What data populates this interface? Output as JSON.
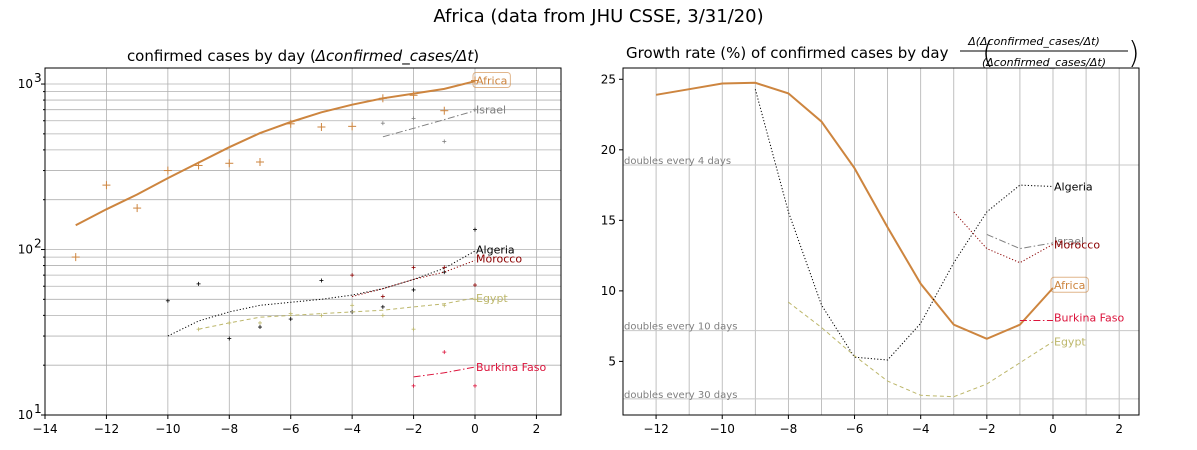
{
  "figure_title": "Africa (data from JHU CSSE, 3/31/20)",
  "colors": {
    "Africa": "#cd853f",
    "Israel": "#808080",
    "Algeria": "#000000",
    "Morocco": "#8b0000",
    "Egypt": "#bdb76b",
    "Burkina Faso": "#dc143c"
  },
  "chart_data": [
    {
      "type": "line",
      "title_prefix": "confirmed cases by day (",
      "title_math": "Δconfirmed_cases/Δt",
      "title_suffix": ")",
      "yscale": "log",
      "xlim": [
        -14,
        2.8
      ],
      "ylim": [
        10,
        1250
      ],
      "xticks": [
        -14,
        -12,
        -10,
        -8,
        -6,
        -4,
        -2,
        0,
        2
      ],
      "xtick_labels": [
        "−14",
        "−12",
        "−10",
        "−8",
        "−6",
        "−4",
        "−2",
        "0",
        "2"
      ],
      "ytick_labels": [
        "10",
        "10",
        "10"
      ],
      "ytick_exps": [
        "1",
        "2",
        "3"
      ],
      "series": [
        {
          "name": "Africa",
          "label": "Africa",
          "boxed": true,
          "style": "solid",
          "x": [
            -13,
            -12,
            -11,
            -10,
            -9,
            -8,
            -7,
            -6,
            -5,
            -4,
            -3,
            -2,
            -1,
            0
          ],
          "y": [
            140,
            175,
            215,
            270,
            335,
            415,
            505,
            590,
            675,
            750,
            820,
            875,
            935,
            1040
          ],
          "points": {
            "x": [
              -13,
              -12,
              -11,
              -10,
              -9,
              -8,
              -7,
              -6,
              -5,
              -4,
              -3,
              -2,
              -1,
              0
            ],
            "y": [
              90,
              245,
              178,
              300,
              322,
              332,
              338,
              575,
              550,
              555,
              820,
              855,
              690,
              1050
            ]
          }
        },
        {
          "name": "Israel",
          "label": "Israel",
          "style": "dashdot",
          "x": [
            -3,
            -2,
            -1,
            0
          ],
          "y": [
            480,
            540,
            610,
            690
          ],
          "points": {
            "x": [
              -3,
              -2,
              -1,
              0
            ],
            "y": [
              580,
              620,
              450,
              700
            ]
          }
        },
        {
          "name": "Algeria",
          "label": "Algeria",
          "style": "dotted",
          "x": [
            -10,
            -9,
            -8,
            -7,
            -6,
            -5,
            -4,
            -3,
            -2,
            -1,
            0
          ],
          "y": [
            30,
            37,
            42,
            46,
            48,
            50,
            53,
            58,
            66,
            77,
            98
          ],
          "points": {
            "x": [
              -10,
              -9,
              -8,
              -7,
              -6,
              -5,
              -4,
              -3,
              -2,
              -1,
              0
            ],
            "y": [
              49,
              62,
              29,
              34,
              38,
              65,
              42,
              45,
              57,
              73,
              132
            ]
          }
        },
        {
          "name": "Morocco",
          "label": "Morocco",
          "style": "dotted",
          "x": [
            -4,
            -3,
            -2,
            -1,
            0
          ],
          "y": [
            52,
            58,
            66,
            73,
            86
          ],
          "points": {
            "x": [
              -4,
              -3,
              -2,
              -1,
              0
            ],
            "y": [
              70,
              52,
              78,
              78,
              61
            ]
          }
        },
        {
          "name": "Egypt",
          "label": "Egypt",
          "style": "dashed",
          "x": [
            -9,
            -8,
            -7,
            -6,
            -5,
            -4,
            -3,
            -2,
            -1,
            0
          ],
          "y": [
            33,
            36,
            39,
            40,
            41,
            42,
            43,
            45,
            47,
            51
          ],
          "points": {
            "x": [
              -9,
              -8,
              -7,
              -6,
              -5,
              -4,
              -3,
              -2,
              -1,
              0
            ],
            "y": [
              33,
              36,
              36,
              41,
              40,
              46,
              40,
              33,
              46,
              50
            ]
          }
        },
        {
          "name": "Burkina Faso",
          "label": "Burkina Faso",
          "style": "dashdot",
          "x": [
            -2,
            -1,
            0
          ],
          "y": [
            17,
            18,
            19.5
          ],
          "points": {
            "x": [
              -2,
              -1,
              0
            ],
            "y": [
              15,
              24,
              15
            ]
          }
        }
      ]
    },
    {
      "type": "line",
      "title_prefix": "Growth rate (%) of confirmed cases by day ",
      "title_frac_num": "Δ(Δconfirmed_cases/Δt)",
      "title_frac_den": "(Δconfirmed_cases/Δt)",
      "xlim": [
        -13,
        2.6
      ],
      "ylim": [
        1.2,
        25.8
      ],
      "xticks": [
        -12,
        -10,
        -8,
        -6,
        -4,
        -2,
        0,
        2
      ],
      "xtick_labels": [
        "−12",
        "−10",
        "−8",
        "−6",
        "−4",
        "−2",
        "0",
        "2"
      ],
      "yticks": [
        5,
        10,
        15,
        20,
        25
      ],
      "ytick_labels": [
        "5",
        "10",
        "15",
        "20",
        "25"
      ],
      "reference_lines": [
        {
          "y": 18.92,
          "label": "doubles every 4 days"
        },
        {
          "y": 7.18,
          "label": "doubles every 10 days"
        },
        {
          "y": 2.34,
          "label": "doubles every 30 days"
        }
      ],
      "series": [
        {
          "name": "Africa",
          "label": "Africa",
          "boxed": true,
          "style": "solid",
          "x": [
            -12,
            -11,
            -10,
            -9,
            -8,
            -7,
            -6,
            -5,
            -4,
            -3,
            -2,
            -1,
            0
          ],
          "y": [
            23.9,
            24.3,
            24.7,
            24.75,
            24.0,
            22.0,
            18.7,
            14.5,
            10.5,
            7.6,
            6.6,
            7.6,
            10.2
          ]
        },
        {
          "name": "Algeria",
          "label": "Algeria",
          "style": "dotted",
          "x": [
            -9,
            -8,
            -7,
            -6,
            -5,
            -4,
            -3,
            -2,
            -1,
            0
          ],
          "y": [
            24.3,
            15.6,
            9.0,
            5.3,
            5.1,
            7.7,
            12.0,
            15.6,
            17.5,
            17.4
          ]
        },
        {
          "name": "Israel",
          "label": "Israel",
          "style": "dashdot",
          "x": [
            -2,
            -1,
            0
          ],
          "y": [
            14.0,
            13.0,
            13.4
          ]
        },
        {
          "name": "Morocco",
          "label": "Morocco",
          "style": "dotted",
          "x": [
            -3,
            -2,
            -1,
            0
          ],
          "y": [
            15.6,
            13.0,
            12.0,
            13.3
          ]
        },
        {
          "name": "Burkina Faso",
          "label": "Burkina Faso",
          "style": "dashdot",
          "x": [
            -1,
            0
          ],
          "y": [
            7.9,
            7.9
          ]
        },
        {
          "name": "Egypt",
          "label": "Egypt",
          "style": "dashed",
          "x": [
            -8,
            -7,
            -6,
            -5,
            -4,
            -3,
            -2,
            -1,
            0
          ],
          "y": [
            9.2,
            7.4,
            5.4,
            3.6,
            2.6,
            2.5,
            3.4,
            4.9,
            6.4
          ]
        }
      ]
    }
  ]
}
